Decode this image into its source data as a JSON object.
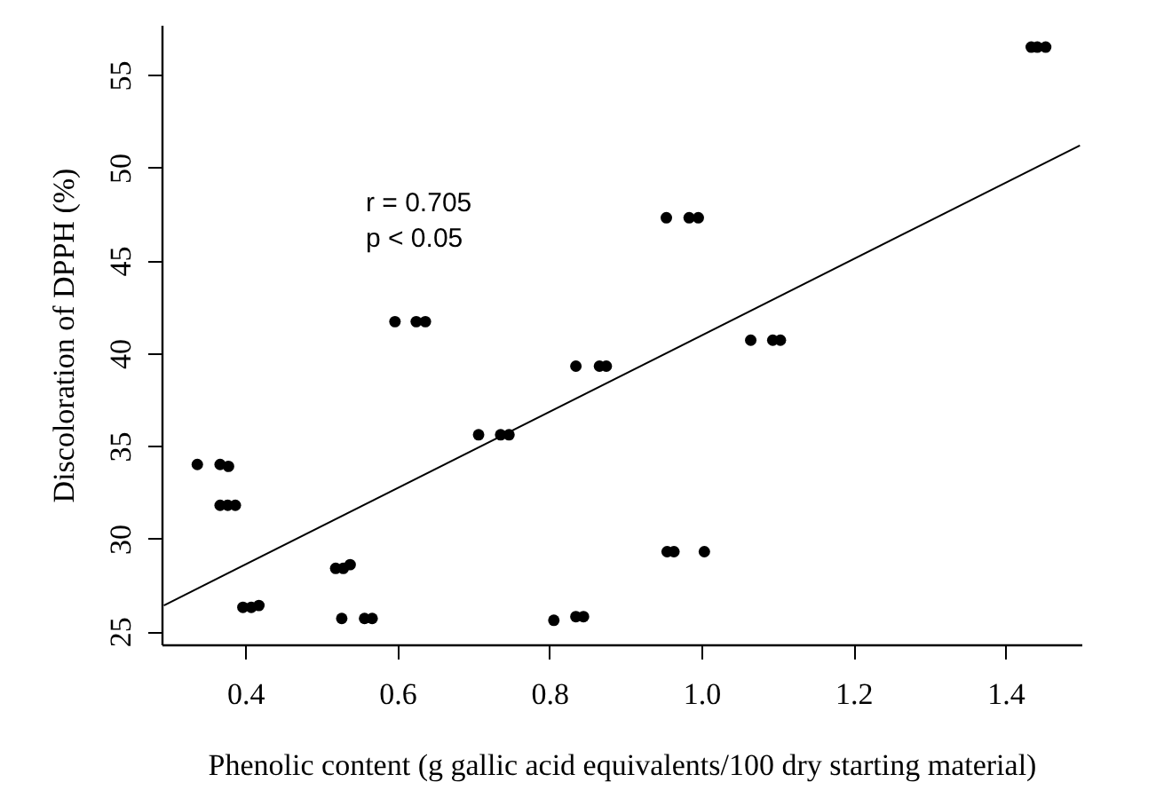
{
  "chart_data": {
    "type": "scatter",
    "xlabel": "Phenolic content (g gallic acid equivalents/100 dry starting material)",
    "ylabel": "Discoloration of DPPH (%)",
    "annotations": [
      "r = 0.705",
      "p < 0.05"
    ],
    "xlim": [
      0.29,
      1.5
    ],
    "xticks": [
      {
        "value": 0.4,
        "label": "0.4"
      },
      {
        "value": 0.6,
        "label": "0.6"
      },
      {
        "value": 0.8,
        "label": "0.8"
      },
      {
        "value": 1.0,
        "label": "1.0"
      },
      {
        "value": 1.2,
        "label": "1.2"
      },
      {
        "value": 1.4,
        "label": "1.4"
      }
    ],
    "ylim": [
      24.3,
      57.7
    ],
    "yticks": [
      25,
      30,
      35,
      40,
      45,
      50,
      55
    ],
    "grid": false,
    "series": [
      {
        "color": "#000000",
        "marker": "circle",
        "x": [
          0.337,
          0.367,
          0.378,
          0.367,
          0.377,
          0.387,
          0.397,
          0.408,
          0.418,
          0.519,
          0.529,
          0.538,
          0.527,
          0.557,
          0.567,
          0.597,
          0.625,
          0.637,
          0.707,
          0.736,
          0.747,
          0.806,
          0.835,
          0.845,
          0.835,
          0.866,
          0.875,
          0.954,
          0.984,
          0.996,
          0.955,
          0.964,
          1.004,
          1.065,
          1.094,
          1.104,
          1.434,
          1.442,
          1.453
        ],
        "values": [
          34.0,
          34.0,
          33.9,
          31.8,
          31.8,
          31.8,
          26.3,
          26.3,
          26.4,
          28.4,
          28.4,
          28.6,
          25.7,
          25.7,
          25.7,
          41.7,
          41.7,
          41.7,
          35.6,
          35.6,
          35.6,
          25.6,
          25.8,
          25.8,
          39.3,
          39.3,
          39.3,
          47.3,
          47.3,
          47.3,
          29.3,
          29.3,
          29.3,
          40.7,
          40.7,
          40.7,
          56.5,
          56.5,
          56.5
        ]
      },
      {
        "type": "line",
        "color": "#000000",
        "x": [
          0.293,
          1.498
        ],
        "values": [
          26.4,
          51.2
        ],
        "line_style": "solid",
        "marker": "none"
      }
    ]
  }
}
